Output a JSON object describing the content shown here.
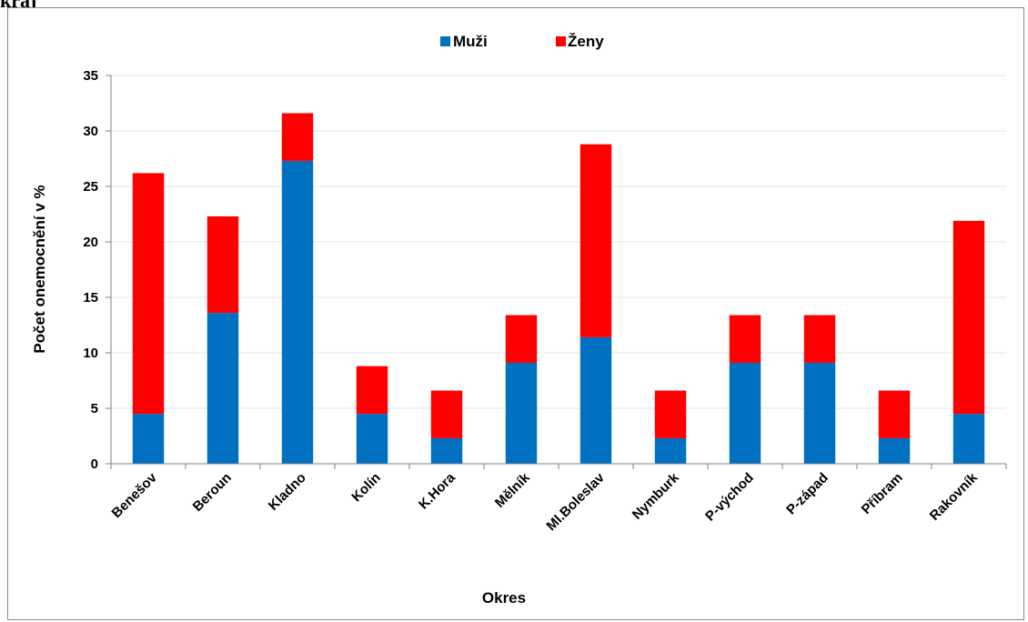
{
  "page": {
    "heading": "kraj"
  },
  "colors": {
    "muzi": "#0070C0",
    "zeny": "#FF0000",
    "grid": "#E6E6E6",
    "axis": "#808080"
  },
  "chart_data": {
    "type": "bar",
    "stacked": true,
    "title": "",
    "xlabel": "Okres",
    "ylabel": "Počet onemocnění  v %",
    "ylim": [
      0,
      35
    ],
    "yticks": [
      "0",
      "5",
      "10",
      "15",
      "20",
      "25",
      "30",
      "35"
    ],
    "grid": true,
    "legend_position": "top-center",
    "categories": [
      "Benešov",
      "Beroun",
      "Kladno",
      "Kolín",
      "K.Hora",
      "Mělník",
      "Ml.Boleslav",
      "Nymburk",
      "P-východ",
      "P-západ",
      "Příbram",
      "Rakovník"
    ],
    "series": [
      {
        "name": "Muži",
        "color": "#0070C0",
        "values": [
          4.5,
          13.6,
          27.3,
          4.5,
          2.3,
          9.1,
          11.4,
          2.3,
          9.1,
          9.1,
          2.3,
          4.5
        ]
      },
      {
        "name": "Ženy",
        "color": "#FF0000",
        "values": [
          21.7,
          8.7,
          4.3,
          4.3,
          4.3,
          4.3,
          17.4,
          4.3,
          4.3,
          4.3,
          4.3,
          17.4
        ]
      }
    ]
  }
}
